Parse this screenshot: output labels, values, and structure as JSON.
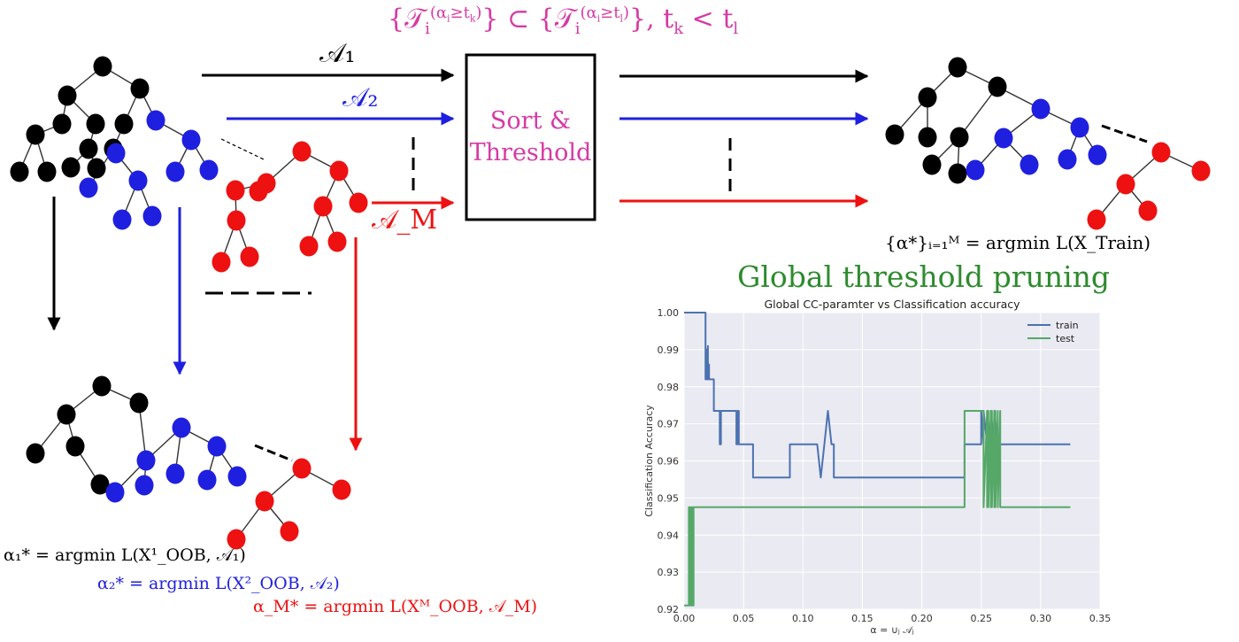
{
  "colors": {
    "black": "#000000",
    "blue": "#1f1fe0",
    "red": "#ee1111",
    "magenta": "#d63aa4",
    "green": "#2e8b2e",
    "train": "#4c72b0",
    "test": "#55a868",
    "plot_bg": "#eaeaf2"
  },
  "labels": {
    "top_formula": "{𝒯ᵢ^(αᵢ≥tₖ)} ⊂ {𝒯ᵢ^(αᵢ≥tₗ)}, tₖ < tₗ",
    "a1": "𝒜₁",
    "a2": "𝒜₂",
    "am": "𝒜_M",
    "box_line1": "Sort &",
    "box_line2": "Threshold",
    "alpha_star": "{α*}ᵢ₌₁ᴹ = argmin L(X_Train)",
    "global_title": "Global threshold pruning",
    "eq1": "α₁* = argmin L(X¹_OOB, 𝒜₁)",
    "eq2": "α₂* = argmin L(X²_OOB, 𝒜₂)",
    "eqm": "α_M* = argmin L(Xᴹ_OOB, 𝒜_M)"
  },
  "chart_data": {
    "type": "line",
    "title": "Global CC-paramter vs Classification accuracy",
    "xlabel": "α = ∪ⱼ 𝒜ⱼ",
    "ylabel": "Classification Accuracy",
    "xlim": [
      0.0,
      0.35
    ],
    "ylim": [
      0.92,
      1.0
    ],
    "xticks": [
      "0.00",
      "0.05",
      "0.10",
      "0.15",
      "0.20",
      "0.25",
      "0.30",
      "0.35"
    ],
    "yticks": [
      "0.92",
      "0.93",
      "0.94",
      "0.95",
      "0.96",
      "0.97",
      "0.98",
      "0.99",
      "1.00"
    ],
    "grid": true,
    "legend": "top-right",
    "series": [
      {
        "name": "train",
        "color": "#4c72b0",
        "x": [
          0.0,
          0.018,
          0.018,
          0.019,
          0.019,
          0.02,
          0.02,
          0.021,
          0.021,
          0.022,
          0.022,
          0.025,
          0.025,
          0.03,
          0.03,
          0.031,
          0.031,
          0.044,
          0.044,
          0.045,
          0.045,
          0.046,
          0.046,
          0.047,
          0.047,
          0.052,
          0.052,
          0.058,
          0.058,
          0.089,
          0.089,
          0.105,
          0.105,
          0.112,
          0.115,
          0.118,
          0.121,
          0.124,
          0.126,
          0.126,
          0.236,
          0.236,
          0.25,
          0.25,
          0.252,
          0.252,
          0.255,
          0.255,
          0.258,
          0.258,
          0.261,
          0.261,
          0.264,
          0.264,
          0.325
        ],
        "y": [
          1.0,
          1.0,
          0.982,
          0.99,
          0.982,
          0.991,
          0.982,
          0.986,
          0.982,
          0.982,
          0.982,
          0.982,
          0.9735,
          0.9735,
          0.9645,
          0.9645,
          0.9735,
          0.9735,
          0.9645,
          0.9735,
          0.9645,
          0.9735,
          0.9645,
          0.9645,
          0.9645,
          0.9645,
          0.9645,
          0.9645,
          0.9555,
          0.9555,
          0.9645,
          0.9645,
          0.9645,
          0.9645,
          0.9555,
          0.9645,
          0.9735,
          0.9645,
          0.9645,
          0.9555,
          0.9555,
          0.9645,
          0.9645,
          0.9735,
          0.9645,
          0.9735,
          0.9645,
          0.9735,
          0.9645,
          0.9735,
          0.9645,
          0.9735,
          0.9645,
          0.9645,
          0.9645
        ]
      },
      {
        "name": "test",
        "color": "#55a868",
        "x": [
          0.0,
          0.004,
          0.004,
          0.005,
          0.005,
          0.006,
          0.006,
          0.007,
          0.007,
          0.008,
          0.008,
          0.236,
          0.236,
          0.252,
          0.252,
          0.255,
          0.255,
          0.256,
          0.256,
          0.258,
          0.258,
          0.259,
          0.259,
          0.261,
          0.261,
          0.262,
          0.262,
          0.264,
          0.264,
          0.266,
          0.266,
          0.325
        ],
        "y": [
          0.921,
          0.921,
          0.9475,
          0.921,
          0.9475,
          0.921,
          0.9475,
          0.921,
          0.9475,
          0.921,
          0.9475,
          0.9475,
          0.9735,
          0.9735,
          0.9475,
          0.9735,
          0.9475,
          0.9735,
          0.9475,
          0.9735,
          0.9475,
          0.9735,
          0.9475,
          0.9735,
          0.9475,
          0.9735,
          0.9475,
          0.9735,
          0.9475,
          0.9735,
          0.9475,
          0.9475
        ]
      }
    ]
  }
}
